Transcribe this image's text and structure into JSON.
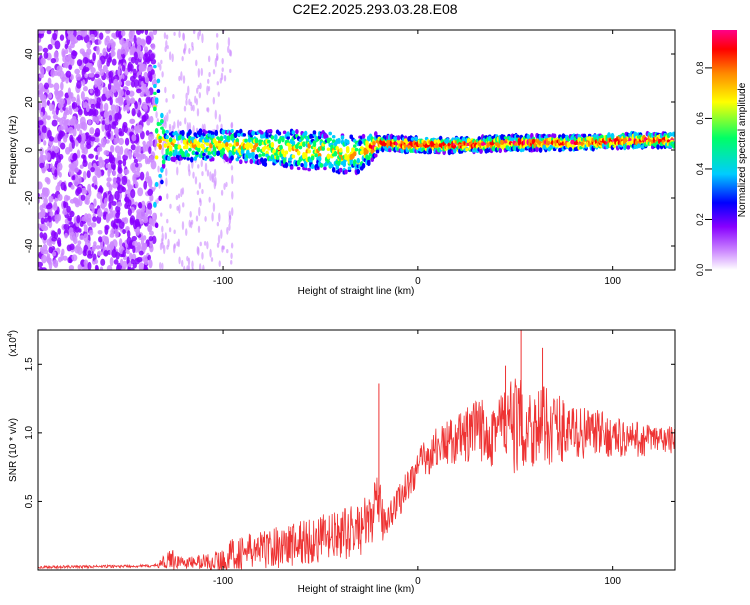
{
  "title": "C2E2.2025.293.03.28.E08",
  "chart_data": [
    {
      "type": "heatmap",
      "xlabel": "Height of straight line (km)",
      "ylabel": "Frequency (Hz)",
      "xlim": [
        -195,
        132
      ],
      "ylim": [
        -50,
        50
      ],
      "xticks": [
        -100,
        0,
        100
      ],
      "yticks": [
        -40,
        -20,
        0,
        20,
        40
      ],
      "colorbar": {
        "label": "Normalized spectral amplitude",
        "range": [
          0,
          0.95
        ],
        "ticks": [
          0.0,
          0.2,
          0.4,
          0.6,
          0.8
        ],
        "colors": [
          "#ffffff",
          "#cc88ff",
          "#8800ff",
          "#0000ff",
          "#00ccff",
          "#00ff66",
          "#ffff00",
          "#ff8800",
          "#ff0000",
          "#ff0088"
        ]
      },
      "band": {
        "x": [
          -195,
          -135,
          -130,
          -100,
          -60,
          -30,
          -22,
          -20,
          0,
          20,
          50,
          80,
          110,
          132
        ],
        "center_hz": [
          0,
          3,
          2,
          2,
          0,
          -2,
          2,
          3,
          2,
          2,
          3,
          3,
          4,
          4
        ],
        "halfwidth_hz": [
          45,
          45,
          6,
          6,
          8,
          8,
          5,
          3,
          3,
          3,
          3,
          3,
          3,
          3
        ]
      }
    },
    {
      "type": "line",
      "xlabel": "Height of straight line (km)",
      "ylabel": "SNR (10 * v/v)",
      "yscale_label": "(x10",
      "yscale_exp": "4",
      "xlim": [
        -195,
        132
      ],
      "ylim": [
        0,
        1.75
      ],
      "xticks": [
        -100,
        0,
        100
      ],
      "yticks": [
        0.5,
        1.0,
        1.5
      ],
      "ytick_labels": [
        "0.5",
        "1.0",
        "1.5"
      ],
      "color": "#ee3333",
      "envelope": {
        "x": [
          -195,
          -135,
          -130,
          -126,
          -120,
          -100,
          -95,
          -80,
          -60,
          -40,
          -30,
          -25,
          -22,
          -20,
          -18,
          -15,
          -10,
          0,
          10,
          20,
          30,
          40,
          50,
          60,
          70,
          80,
          90,
          100,
          110,
          120,
          132
        ],
        "mean": [
          0.02,
          0.03,
          0.06,
          0.08,
          0.05,
          0.07,
          0.12,
          0.15,
          0.2,
          0.25,
          0.3,
          0.35,
          0.45,
          0.5,
          0.35,
          0.4,
          0.5,
          0.75,
          0.9,
          0.95,
          1.0,
          1.05,
          1.05,
          1.05,
          1.05,
          1.0,
          1.0,
          0.97,
          0.95,
          0.95,
          0.95
        ],
        "spread": [
          0.01,
          0.01,
          0.05,
          0.08,
          0.04,
          0.08,
          0.12,
          0.14,
          0.18,
          0.18,
          0.2,
          0.2,
          0.2,
          0.2,
          0.15,
          0.12,
          0.12,
          0.14,
          0.15,
          0.18,
          0.25,
          0.3,
          0.35,
          0.3,
          0.28,
          0.2,
          0.18,
          0.15,
          0.14,
          0.12,
          0.1
        ]
      },
      "spikes": [
        {
          "x": -20,
          "y": 1.36
        },
        {
          "x": 53,
          "y": 1.75
        },
        {
          "x": 64,
          "y": 1.62
        },
        {
          "x": 45,
          "y": 1.49
        }
      ]
    }
  ]
}
